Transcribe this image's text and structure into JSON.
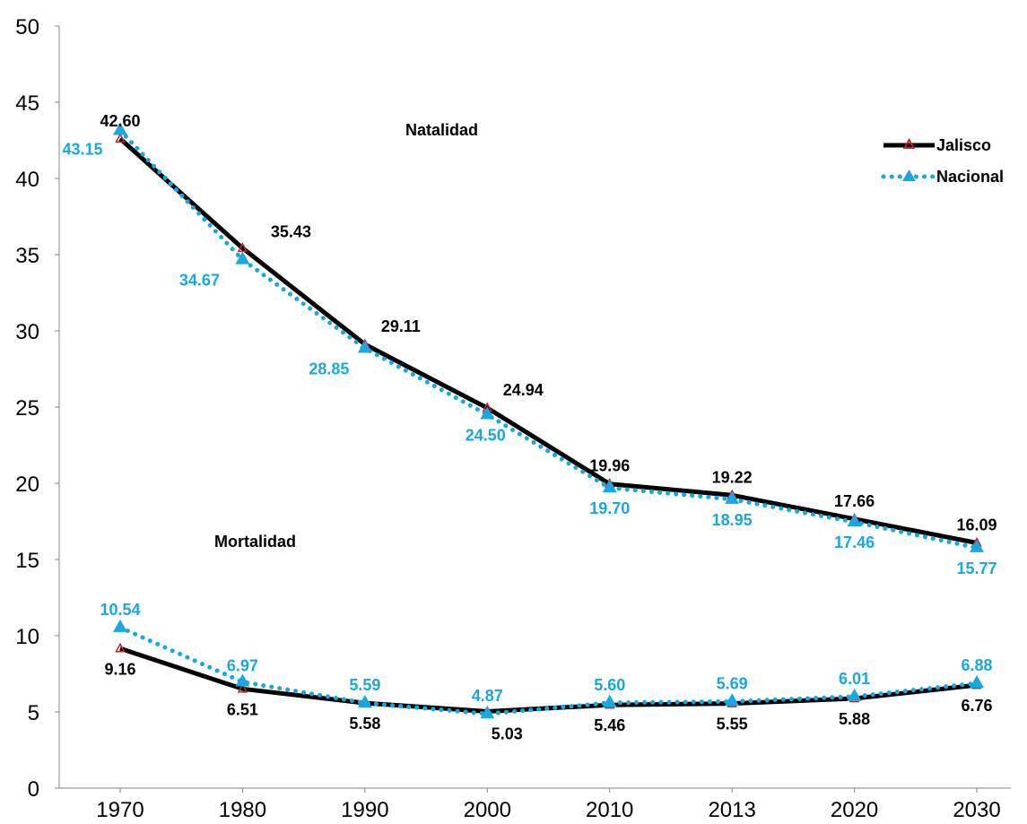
{
  "chart_data": {
    "type": "line",
    "title": "",
    "xlabel": "",
    "ylabel": "",
    "categories": [
      "1970",
      "1980",
      "1990",
      "2000",
      "2010",
      "2013",
      "2020",
      "2030"
    ],
    "ylim": [
      0,
      50
    ],
    "yticks": [
      "0",
      "5",
      "10",
      "15",
      "20",
      "25",
      "30",
      "35",
      "40",
      "45",
      "50"
    ],
    "grid": false,
    "legend_position": "top-right",
    "legend": [
      "Jalisco",
      "Nacional"
    ],
    "annotations": {
      "natalidad": "Natalidad",
      "mortalidad": "Mortalidad"
    },
    "colors": {
      "jalisco": "#000000",
      "jalisco_marker": "#c0262c",
      "nacional": "#1aa7df"
    },
    "series": [
      {
        "name": "Jalisco",
        "group": "natalidad",
        "style": "solid",
        "values": [
          42.6,
          35.43,
          29.11,
          24.94,
          19.96,
          19.22,
          17.66,
          16.09
        ],
        "labels": [
          "42.60",
          "35.43",
          "29.11",
          "24.94",
          "19.96",
          "19.22",
          "17.66",
          "16.09"
        ]
      },
      {
        "name": "Nacional",
        "group": "natalidad",
        "style": "dotted",
        "values": [
          43.15,
          34.67,
          28.85,
          24.5,
          19.7,
          18.95,
          17.46,
          15.77
        ],
        "labels": [
          "43.15",
          "34.67",
          "28.85",
          "24.50",
          "19.70",
          "18.95",
          "17.46",
          "15.77"
        ]
      },
      {
        "name": "Jalisco",
        "group": "mortalidad",
        "style": "solid",
        "values": [
          9.16,
          6.51,
          5.58,
          5.03,
          5.46,
          5.55,
          5.88,
          6.76
        ],
        "labels": [
          "9.16",
          "6.51",
          "5.58",
          "5.03",
          "5.46",
          "5.55",
          "5.88",
          "6.76"
        ]
      },
      {
        "name": "Nacional",
        "group": "mortalidad",
        "style": "dotted",
        "values": [
          10.54,
          6.97,
          5.59,
          4.87,
          5.6,
          5.69,
          6.01,
          6.88
        ],
        "labels": [
          "10.54",
          "6.97",
          "5.59",
          "4.87",
          "5.60",
          "5.69",
          "6.01",
          "6.88"
        ]
      }
    ]
  }
}
